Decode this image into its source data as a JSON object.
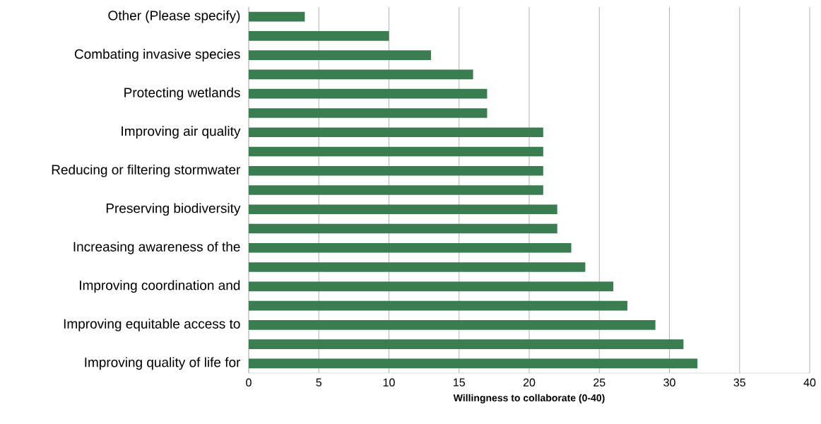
{
  "chart_data": {
    "type": "bar",
    "orientation": "horizontal",
    "xlabel": "Willingness to collaborate (0-40)",
    "categories": [
      "Other (Please specify)",
      null,
      "Combating invasive species",
      null,
      "Protecting wetlands",
      null,
      "Improving air quality",
      null,
      "Reducing or filtering stormwater",
      null,
      "Preserving biodiversity",
      null,
      "Increasing awareness of the",
      null,
      "Improving coordination and",
      null,
      "Improving equitable access to",
      null,
      "Improving quality of life for"
    ],
    "values": [
      4,
      10,
      13,
      16,
      17,
      17,
      21,
      21,
      21,
      21,
      22,
      22,
      23,
      24,
      26,
      27,
      29,
      31,
      32
    ],
    "color": "#3a7d50",
    "xlim": [
      0,
      40
    ],
    "xticks": [
      0,
      5,
      10,
      15,
      20,
      25,
      30,
      35,
      40
    ],
    "grid": "x"
  }
}
